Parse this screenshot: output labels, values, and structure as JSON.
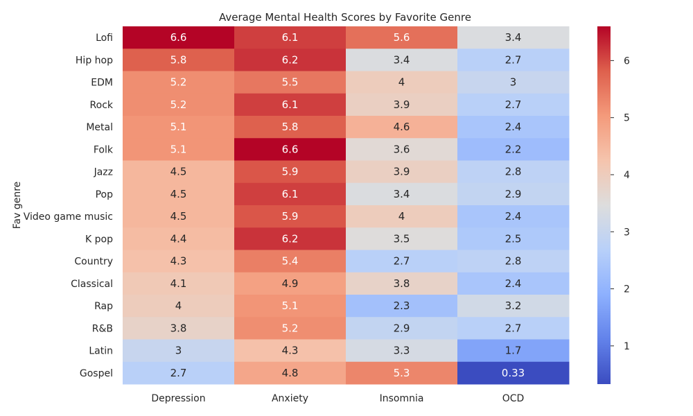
{
  "chart_data": {
    "type": "heatmap",
    "title": "Average Mental Health Scores by Favorite Genre",
    "xlabel": "",
    "ylabel": "Fav genre",
    "columns": [
      "Depression",
      "Anxiety",
      "Insomnia",
      "OCD"
    ],
    "rows": [
      "Lofi",
      "Hip hop",
      "EDM",
      "Rock",
      "Metal",
      "Folk",
      "Jazz",
      "Pop",
      "Video game music",
      "K pop",
      "Country",
      "Classical",
      "Rap",
      "R&B",
      "Latin",
      "Gospel"
    ],
    "values": [
      [
        6.6,
        6.1,
        5.6,
        3.4
      ],
      [
        5.8,
        6.2,
        3.4,
        2.7
      ],
      [
        5.2,
        5.5,
        4,
        3
      ],
      [
        5.2,
        6.1,
        3.9,
        2.7
      ],
      [
        5.1,
        5.8,
        4.6,
        2.4
      ],
      [
        5.1,
        6.6,
        3.6,
        2.2
      ],
      [
        4.5,
        5.9,
        3.9,
        2.8
      ],
      [
        4.5,
        6.1,
        3.4,
        2.9
      ],
      [
        4.5,
        5.9,
        4,
        2.4
      ],
      [
        4.4,
        6.2,
        3.5,
        2.5
      ],
      [
        4.3,
        5.4,
        2.7,
        2.8
      ],
      [
        4.1,
        4.9,
        3.8,
        2.4
      ],
      [
        4,
        5.1,
        2.3,
        3.2
      ],
      [
        3.8,
        5.2,
        2.9,
        2.7
      ],
      [
        3,
        4.3,
        3.3,
        1.7
      ],
      [
        2.7,
        4.8,
        5.3,
        0.33
      ]
    ],
    "colormap": "coolwarm",
    "vmin": 0.33,
    "vmax": 6.6,
    "colorbar_ticks": [
      1,
      2,
      3,
      4,
      5,
      6
    ],
    "annotate": true
  }
}
